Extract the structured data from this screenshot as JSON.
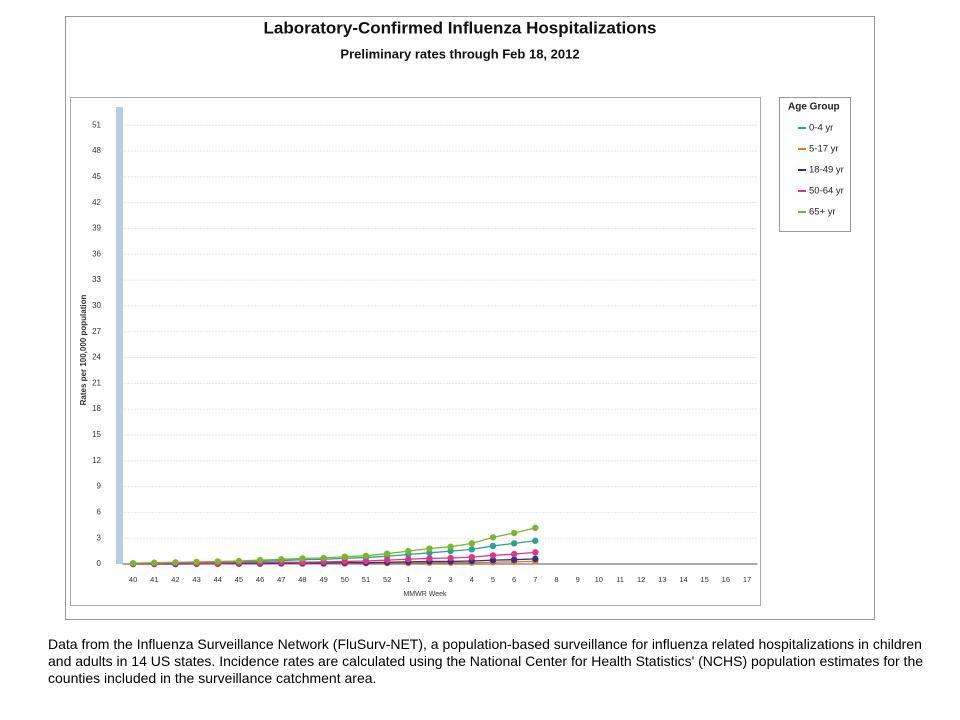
{
  "chart_data": {
    "type": "line",
    "title": "Laboratory-Confirmed Influenza Hospitalizations",
    "subtitle": "Preliminary rates through Feb 18, 2012",
    "x_label": "MMWR Week",
    "y_label": "Rates per 100,000 population",
    "legend_title": "Age Group",
    "legend_position": "right",
    "grid": true,
    "categories": [
      "40",
      "41",
      "42",
      "43",
      "44",
      "45",
      "46",
      "47",
      "48",
      "49",
      "50",
      "51",
      "52",
      "1",
      "2",
      "3",
      "4",
      "5",
      "6",
      "7",
      "8",
      "9",
      "10",
      "11",
      "12",
      "13",
      "14",
      "15",
      "16",
      "17"
    ],
    "ylim": [
      0,
      53
    ],
    "yticks": [
      0,
      3,
      6,
      9,
      12,
      15,
      18,
      21,
      24,
      27,
      30,
      33,
      36,
      39,
      42,
      45,
      48,
      51
    ],
    "series": [
      {
        "name": "0-4 yr",
        "color": "#2aa58c",
        "values": [
          0.05,
          0.1,
          0.1,
          0.15,
          0.2,
          0.25,
          0.3,
          0.4,
          0.5,
          0.55,
          0.65,
          0.75,
          0.9,
          1.1,
          1.3,
          1.5,
          1.7,
          2.1,
          2.4,
          2.7,
          null,
          null,
          null,
          null,
          null,
          null,
          null,
          null,
          null,
          null
        ]
      },
      {
        "name": "5-17 yr",
        "color": "#e87722",
        "values": [
          0,
          0,
          0,
          0,
          0,
          0.05,
          0.05,
          0.05,
          0.05,
          0.05,
          0.05,
          0.1,
          0.1,
          0.1,
          0.15,
          0.15,
          0.15,
          0.2,
          0.25,
          0.3,
          null,
          null,
          null,
          null,
          null,
          null,
          null,
          null,
          null,
          null
        ]
      },
      {
        "name": "18-49 yr",
        "color": "#2e2e8c",
        "values": [
          0,
          0,
          0,
          0.05,
          0.05,
          0.05,
          0.05,
          0.1,
          0.1,
          0.1,
          0.15,
          0.15,
          0.2,
          0.25,
          0.3,
          0.3,
          0.35,
          0.45,
          0.5,
          0.6,
          null,
          null,
          null,
          null,
          null,
          null,
          null,
          null,
          null,
          null
        ]
      },
      {
        "name": "50-64 yr",
        "color": "#e0338a",
        "values": [
          0.05,
          0.05,
          0.1,
          0.1,
          0.1,
          0.15,
          0.15,
          0.2,
          0.2,
          0.25,
          0.3,
          0.35,
          0.45,
          0.55,
          0.65,
          0.7,
          0.8,
          1.0,
          1.15,
          1.35,
          null,
          null,
          null,
          null,
          null,
          null,
          null,
          null,
          null,
          null
        ]
      },
      {
        "name": "65+ yr",
        "color": "#7ab72e",
        "values": [
          0.1,
          0.15,
          0.2,
          0.25,
          0.3,
          0.35,
          0.45,
          0.55,
          0.65,
          0.7,
          0.85,
          0.95,
          1.2,
          1.5,
          1.8,
          2.0,
          2.4,
          3.1,
          3.6,
          4.2,
          null,
          null,
          null,
          null,
          null,
          null,
          null,
          null,
          null,
          null
        ]
      }
    ]
  },
  "footnote": "Data from the Influenza Surveillance Network (FluSurv-NET), a population-based surveillance for influenza related hospitalizations in children and adults in 14 US states. Incidence rates are calculated using the National Center for Health Statistics' (NCHS) population estimates for the counties included in the surveillance catchment area."
}
